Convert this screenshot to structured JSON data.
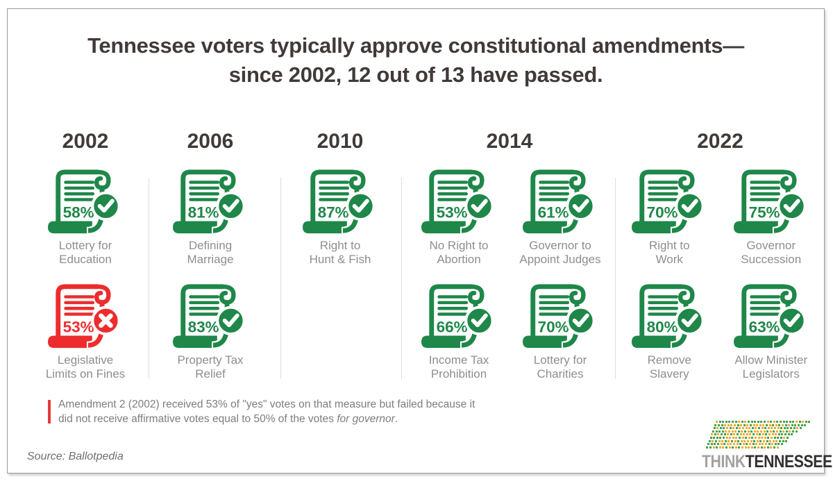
{
  "title": {
    "line1": "Tennessee voters typically approve constitutional amendments—",
    "line2": "since 2002, 12 out of 13 have passed."
  },
  "years": [
    {
      "label": "2002",
      "cols": 1,
      "items": [
        {
          "pct": "58%",
          "status": "pass",
          "label_lines": [
            "Lottery for",
            "Education"
          ]
        },
        {
          "pct": "53%",
          "status": "fail",
          "label_lines": [
            "Legislative",
            "Limits on Fines"
          ]
        }
      ]
    },
    {
      "label": "2006",
      "cols": 1,
      "items": [
        {
          "pct": "81%",
          "status": "pass",
          "label_lines": [
            "Defining",
            "Marriage"
          ]
        },
        {
          "pct": "83%",
          "status": "pass",
          "label_lines": [
            "Property Tax",
            "Relief"
          ]
        }
      ]
    },
    {
      "label": "2010",
      "cols": 1,
      "items": [
        {
          "pct": "87%",
          "status": "pass",
          "label_lines": [
            "Right to",
            "Hunt & Fish"
          ]
        }
      ]
    },
    {
      "label": "2014",
      "cols": 2,
      "items": [
        {
          "pct": "53%",
          "status": "pass",
          "label_lines": [
            "No Right to",
            "Abortion"
          ]
        },
        {
          "pct": "61%",
          "status": "pass",
          "label_lines": [
            "Governor to",
            "Appoint Judges"
          ]
        },
        {
          "pct": "66%",
          "status": "pass",
          "label_lines": [
            "Income Tax",
            "Prohibition"
          ]
        },
        {
          "pct": "70%",
          "status": "pass",
          "label_lines": [
            "Lottery for",
            "Charities"
          ]
        }
      ]
    },
    {
      "label": "2022",
      "cols": 2,
      "items": [
        {
          "pct": "70%",
          "status": "pass",
          "label_lines": [
            "Right to",
            "Work"
          ]
        },
        {
          "pct": "75%",
          "status": "pass",
          "label_lines": [
            "Governor",
            "Succession"
          ]
        },
        {
          "pct": "80%",
          "status": "pass",
          "label_lines": [
            "Remove",
            "Slavery"
          ]
        },
        {
          "pct": "63%",
          "status": "pass",
          "label_lines": [
            "Allow Minister",
            "Legislators"
          ]
        }
      ]
    }
  ],
  "footnote": {
    "text": "Amendment 2 (2002) received 53% of \"yes\" votes on that measure but failed because it did not receive affirmative votes equal to 50% of the votes ",
    "italic": "for governor",
    "suffix": "."
  },
  "source_label": "Source: Ballotpedia",
  "logo": {
    "think": "THINK",
    "tennessee": "TENNESSEE"
  },
  "icons": {
    "amendment": "scroll-icon",
    "pass": "check-circle-icon",
    "fail": "x-circle-icon"
  },
  "colors": {
    "pass_green": "#1e8749",
    "fail_red": "#ed2c2e",
    "heading": "#403a38",
    "label_gray": "#8e8e8e",
    "footnote_bar_red": "#e23b3b",
    "divider_gray": "#dcdcdc",
    "logo_dot_green": "#45a24b",
    "logo_dot_yellow": "#f0ab2d"
  },
  "chart_data": {
    "type": "table",
    "title": "Tennessee constitutional amendment votes since 2002",
    "columns": [
      "year",
      "amendment",
      "yes_vote_pct",
      "passed"
    ],
    "rows": [
      [
        2002,
        "Lottery for Education",
        58,
        true
      ],
      [
        2002,
        "Legislative Limits on Fines",
        53,
        false
      ],
      [
        2006,
        "Defining Marriage",
        81,
        true
      ],
      [
        2006,
        "Property Tax Relief",
        83,
        true
      ],
      [
        2010,
        "Right to Hunt & Fish",
        87,
        true
      ],
      [
        2014,
        "No Right to Abortion",
        53,
        true
      ],
      [
        2014,
        "Governor to Appoint Judges",
        61,
        true
      ],
      [
        2014,
        "Income Tax Prohibition",
        66,
        true
      ],
      [
        2014,
        "Lottery for Charities",
        70,
        true
      ],
      [
        2022,
        "Right to Work",
        70,
        true
      ],
      [
        2022,
        "Governor Succession",
        75,
        true
      ],
      [
        2022,
        "Remove Slavery",
        80,
        true
      ],
      [
        2022,
        "Allow Minister Legislators",
        63,
        true
      ]
    ]
  }
}
